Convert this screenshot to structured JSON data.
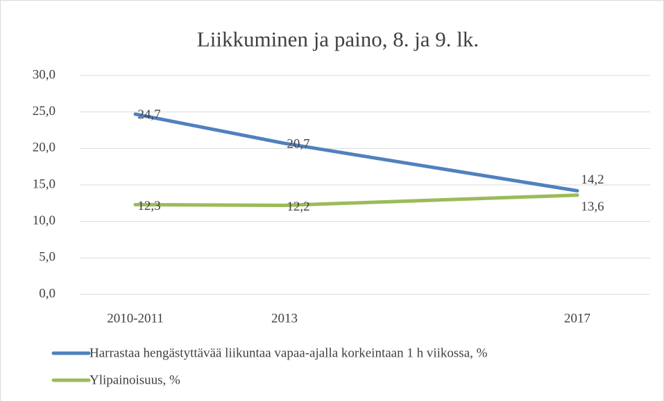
{
  "chart_data": {
    "type": "line",
    "title": "Liikkuminen ja paino, 8. ja 9. lk.",
    "categories": [
      "2010-2011",
      "2013",
      "2017"
    ],
    "series": [
      {
        "name": "Harrastaa hengästyttävää liikuntaa vapaa-ajalla korkeintaan 1 h viikossa, %",
        "color": "#4f81bd",
        "values": [
          24.7,
          20.7,
          14.2
        ],
        "value_labels": [
          "24,7",
          "20,7",
          "14,2"
        ]
      },
      {
        "name": "Ylipainoisuus, %",
        "color": "#9bbb59",
        "values": [
          12.3,
          12.2,
          13.6
        ],
        "value_labels": [
          "12,3",
          "12,2",
          "13,6"
        ]
      }
    ],
    "ylim": [
      0,
      30
    ],
    "yticks": [
      {
        "value": 0,
        "label": "0,0"
      },
      {
        "value": 5,
        "label": "5,0"
      },
      {
        "value": 10,
        "label": "10,0"
      },
      {
        "value": 15,
        "label": "15,0"
      },
      {
        "value": 20,
        "label": "20,0"
      },
      {
        "value": 25,
        "label": "25,0"
      },
      {
        "value": 30,
        "label": "30,0"
      }
    ],
    "grid": true,
    "legend": "bottom"
  }
}
